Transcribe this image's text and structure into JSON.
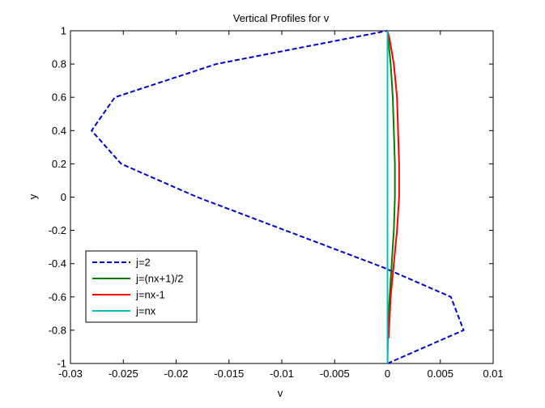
{
  "chart_data": {
    "type": "line",
    "title": "Vertical Profiles for v",
    "xlabel": "v",
    "ylabel": "y",
    "xlim": [
      -0.03,
      0.01
    ],
    "ylim": [
      -1,
      1
    ],
    "xticks": [
      -0.03,
      -0.025,
      -0.02,
      -0.015,
      -0.01,
      -0.005,
      0,
      0.005,
      0.01
    ],
    "xtick_labels": [
      "-0.03",
      "-0.025",
      "-0.02",
      "-0.015",
      "-0.01",
      "-0.005",
      "0",
      "0.005",
      "0.01"
    ],
    "yticks": [
      -1,
      -0.8,
      -0.6,
      -0.4,
      -0.2,
      0,
      0.2,
      0.4,
      0.6,
      0.8,
      1
    ],
    "ytick_labels": [
      "-1",
      "-0.8",
      "-0.6",
      "-0.4",
      "-0.2",
      "0",
      "0.2",
      "0.4",
      "0.6",
      "0.8",
      "1"
    ],
    "grid": false,
    "legend_position": "bottom-left",
    "series": [
      {
        "name": "j=2",
        "color": "#0000cc",
        "dash": "dashed",
        "points": [
          [
            0,
            -1
          ],
          [
            0.0072,
            -0.8
          ],
          [
            0.006,
            -0.6
          ],
          [
            -0.0005,
            -0.42
          ],
          [
            -0.018,
            0
          ],
          [
            -0.0252,
            0.2
          ],
          [
            -0.028,
            0.4
          ],
          [
            -0.0258,
            0.6
          ],
          [
            -0.0162,
            0.8
          ],
          [
            0,
            1
          ]
        ]
      },
      {
        "name": "j=(nx+1)/2",
        "color": "#008000",
        "dash": "solid",
        "points": [
          [
            0,
            -1
          ],
          [
            5e-05,
            -0.8
          ],
          [
            0.0002,
            -0.6
          ],
          [
            0.0004,
            -0.4
          ],
          [
            0.0006,
            -0.2
          ],
          [
            0.0007,
            0
          ],
          [
            0.0007,
            0.2
          ],
          [
            0.0006,
            0.4
          ],
          [
            0.0005,
            0.6
          ],
          [
            0.0003,
            0.8
          ],
          [
            0,
            1
          ]
        ]
      },
      {
        "name": "j=nx-1",
        "color": "#ff0000",
        "dash": "solid",
        "points": [
          [
            0.0001,
            -0.85
          ],
          [
            0.0003,
            -0.6
          ],
          [
            0.0006,
            -0.4
          ],
          [
            0.0009,
            -0.2
          ],
          [
            0.0011,
            0
          ],
          [
            0.0011,
            0.2
          ],
          [
            0.001,
            0.4
          ],
          [
            0.0009,
            0.6
          ],
          [
            0.0006,
            0.8
          ],
          [
            0.0002,
            0.95
          ],
          [
            0,
            1
          ]
        ]
      },
      {
        "name": "j=nx",
        "color": "#00bfbf",
        "dash": "solid",
        "points": [
          [
            0,
            -1
          ],
          [
            0,
            1
          ]
        ]
      }
    ]
  }
}
